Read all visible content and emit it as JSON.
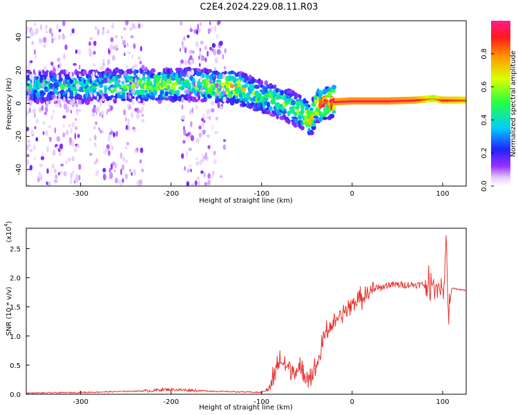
{
  "title": "C2E4.2024.229.08.11.R03",
  "chart_data": [
    {
      "type": "heatmap",
      "xlabel": "Height of straight line (km)",
      "ylabel": "Frequency (Hz)",
      "xlim": [
        -360,
        126
      ],
      "ylim": [
        -50,
        50
      ],
      "xticks": [
        -300,
        -200,
        -100,
        0,
        100
      ],
      "yticks": [
        -40,
        -20,
        0,
        20,
        40
      ],
      "colorbar": {
        "label": "Normalized spectral amplitude",
        "range": [
          0,
          1
        ],
        "ticks": [
          "0.0",
          "0.2",
          "0.4",
          "0.6",
          "0.8"
        ],
        "colormap": "rainbow (white-purple-blue-cyan-green-yellow-red-magenta)"
      },
      "ridge": {
        "x": [
          -345,
          -300,
          -250,
          -200,
          -180,
          -150,
          -130,
          -100,
          -80,
          -60,
          -45,
          -40,
          -30,
          -20,
          0,
          40,
          70,
          90,
          100,
          126
        ],
        "y": [
          10,
          10,
          11,
          11,
          12,
          10,
          10,
          4,
          1,
          -4,
          -10,
          -2,
          0,
          1,
          1.5,
          1.5,
          2,
          3,
          2,
          2
        ],
        "peak_amplitude": [
          0.45,
          0.45,
          0.55,
          0.6,
          0.5,
          0.6,
          0.7,
          0.5,
          0.55,
          0.6,
          0.7,
          0.85,
          0.9,
          0.95,
          0.98,
          0.98,
          0.95,
          0.75,
          0.9,
          0.85
        ]
      },
      "noise_regions": [
        {
          "x": [
            -360,
            -300
          ],
          "y": [
            -50,
            50
          ]
        },
        {
          "x": [
            -290,
            -230
          ],
          "y": [
            -50,
            50
          ]
        },
        {
          "x": [
            -190,
            -140
          ],
          "y": [
            -50,
            50
          ]
        }
      ]
    },
    {
      "type": "line",
      "xlabel": "Height of straight line (km)",
      "ylabel": "SNR (10 * v/v)",
      "y_scale_label": "(x10",
      "y_scale_exponent": "4",
      "xlim": [
        -360,
        126
      ],
      "ylim": [
        0,
        2.85
      ],
      "xticks": [
        -300,
        -200,
        -100,
        0,
        100
      ],
      "yticks": [
        "0.0",
        "0.5",
        "1.0",
        "1.5",
        "2.0",
        "2.5"
      ],
      "color": "#e8322c",
      "series": [
        {
          "x": [
            -360,
            -300,
            -250,
            -220,
            -210,
            -200,
            -180,
            -150,
            -120,
            -100,
            -90,
            -85,
            -80,
            -70,
            -60,
            -50,
            -45,
            -40,
            -35,
            -30,
            -25,
            -20,
            -15,
            -10,
            -5,
            0,
            10,
            20,
            30,
            40,
            60,
            80,
            90,
            95,
            100,
            102,
            104,
            106,
            110,
            126
          ],
          "y": [
            0.02,
            0.03,
            0.05,
            0.06,
            0.08,
            0.08,
            0.07,
            0.05,
            0.04,
            0.03,
            0.1,
            0.3,
            0.55,
            0.4,
            0.35,
            0.3,
            0.25,
            0.4,
            0.65,
            1.0,
            1.1,
            1.2,
            1.3,
            1.4,
            1.45,
            1.55,
            1.65,
            1.75,
            1.82,
            1.88,
            1.88,
            1.88,
            1.9,
            1.87,
            1.8,
            1.95,
            2.8,
            1.3,
            1.82,
            1.78
          ]
        }
      ]
    }
  ]
}
